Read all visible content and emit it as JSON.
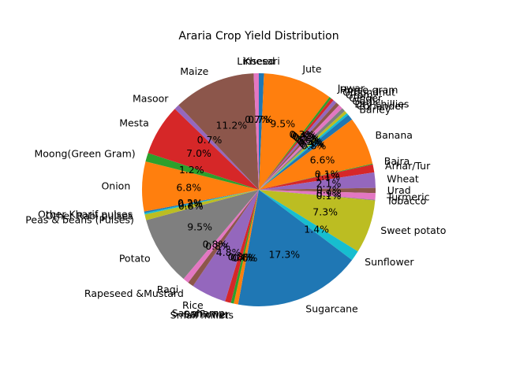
{
  "chart_data": {
    "type": "pie",
    "title": "Araria Crop Yield Distribution",
    "start_angle_deg": 90,
    "direction": "clockwise",
    "colors": [
      "#1f77b4",
      "#ff7f0e",
      "#2ca02c",
      "#d62728",
      "#9467bd",
      "#8c564b",
      "#e377c2",
      "#7f7f7f",
      "#bcbd22",
      "#17becf"
    ],
    "slices": [
      {
        "label": "Khesari",
        "pct_label": "0.7%",
        "value": 0.7
      },
      {
        "label": "Jute",
        "pct_label": "9.5%",
        "value": 9.5
      },
      {
        "label": "Jowar",
        "pct_label": "0.3%",
        "value": 0.3
      },
      {
        "label": "Horse-gram",
        "pct_label": "0.4%",
        "value": 0.4
      },
      {
        "label": "Groundnut",
        "pct_label": "0.5%",
        "value": 0.5
      },
      {
        "label": "Gram",
        "pct_label": "0.5%",
        "value": 0.5
      },
      {
        "label": "Ginger",
        "pct_label": "0.6%",
        "value": 0.6
      },
      {
        "label": "Garlic",
        "pct_label": "0.5%",
        "value": 0.5
      },
      {
        "label": "Dry chillies",
        "pct_label": "0.4%",
        "value": 0.4
      },
      {
        "label": "Coriander",
        "pct_label": "0.3%",
        "value": 0.3
      },
      {
        "label": "Barley",
        "pct_label": "0.8%",
        "value": 0.8
      },
      {
        "label": "Banana",
        "pct_label": "6.6%",
        "value": 6.6
      },
      {
        "label": "Bajra",
        "pct_label": "0.1%",
        "value": 0.1
      },
      {
        "label": "Arhar/Tur",
        "pct_label": "1.1%",
        "value": 1.1
      },
      {
        "label": "Wheat",
        "pct_label": "2.1%",
        "value": 2.1
      },
      {
        "label": "Urad",
        "pct_label": "0.7%",
        "value": 0.7
      },
      {
        "label": "Turmeric",
        "pct_label": "0.9%",
        "value": 0.9
      },
      {
        "label": "Tobacco",
        "pct_label": "0.1%",
        "value": 0.1
      },
      {
        "label": "Sweet potato",
        "pct_label": "7.3%",
        "value": 7.3
      },
      {
        "label": "Sunflower",
        "pct_label": "1.4%",
        "value": 1.4
      },
      {
        "label": "Sugarcane",
        "pct_label": "17.3%",
        "value": 17.3
      },
      {
        "label": "Small millets",
        "pct_label": "0.6%",
        "value": 0.6
      },
      {
        "label": "Safflower",
        "pct_label": "0.4%",
        "value": 0.4
      },
      {
        "label": "Sannhamp",
        "pct_label": "0.8%",
        "value": 0.8
      },
      {
        "label": "Rice",
        "pct_label": "4.8%",
        "value": 4.8
      },
      {
        "label": "Rapeseed &Mustard",
        "pct_label": "0.8%",
        "value": 0.8
      },
      {
        "label": "Ragi",
        "pct_label": "0.8%",
        "value": 0.8
      },
      {
        "label": "Potato",
        "pct_label": "9.5%",
        "value": 9.5
      },
      {
        "label": "Peas & beans (Pulses)",
        "pct_label": "0.8%",
        "value": 0.8
      },
      {
        "label": "Other Rabi pulses",
        "pct_label": "0.2%",
        "value": 0.2
      },
      {
        "label": "Other Kharif pulses",
        "pct_label": "0.2%",
        "value": 0.2
      },
      {
        "label": "Onion",
        "pct_label": "6.8%",
        "value": 6.8
      },
      {
        "label": "Moong(Green Gram)",
        "pct_label": "1.2%",
        "value": 1.2
      },
      {
        "label": "Mesta",
        "pct_label": "7.0%",
        "value": 7.0
      },
      {
        "label": "Masoor",
        "pct_label": "0.7%",
        "value": 0.7
      },
      {
        "label": "Maize",
        "pct_label": "11.2%",
        "value": 11.2
      },
      {
        "label": "Linseed",
        "pct_label": "0.7%",
        "value": 0.7
      }
    ]
  }
}
